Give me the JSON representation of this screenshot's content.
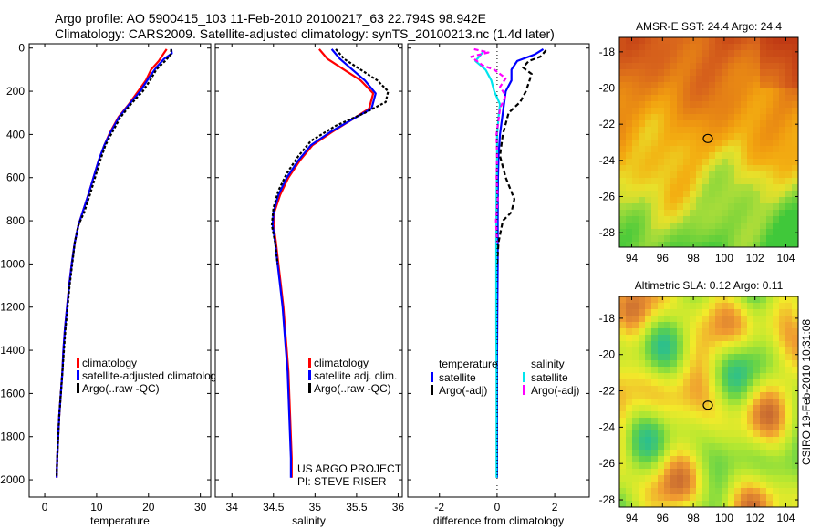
{
  "title": {
    "line1": "Argo profile: AO 5900415_103 11-Feb-2010 20100217_63 22.794S 98.942E",
    "line2": "Climatology: CARS2009. Satellite-adjusted climatology: synTS_20100213.nc (1.4d later)"
  },
  "credit": "CSIRO 19-Feb-2010 10:31:08",
  "project_note": {
    "line1": "US ARGO PROJECT",
    "line2": "PI: STEVE RISER"
  },
  "colors": {
    "clim": "#ff0000",
    "sat": "#0000ff",
    "argo": "#000000",
    "sal_sat": "#00e5ee",
    "sal_argo": "#ff00ff"
  },
  "chart_data": [
    {
      "type": "line",
      "name": "temperature",
      "xlabel": "temperature",
      "ylabel": "",
      "xlim": [
        -3,
        32
      ],
      "ylim": [
        2080,
        -20
      ],
      "xticks": [
        0,
        10,
        20,
        30
      ],
      "yticks": [
        0,
        200,
        400,
        600,
        800,
        1000,
        1200,
        1400,
        1600,
        1800,
        2000
      ],
      "legend": [
        "climatology",
        "satellite-adjusted climatology",
        "Argo(..raw -QC)"
      ],
      "series": [
        {
          "name": "climatology",
          "color": "#ff0000",
          "dash": "",
          "points": [
            [
              23.5,
              5
            ],
            [
              22.8,
              30
            ],
            [
              22,
              60
            ],
            [
              20.5,
              100
            ],
            [
              19.5,
              150
            ],
            [
              18,
              200
            ],
            [
              16.2,
              260
            ],
            [
              14.2,
              320
            ],
            [
              12.6,
              390
            ],
            [
              11.5,
              450
            ],
            [
              10.4,
              520
            ],
            [
              9.4,
              600
            ],
            [
              8.4,
              680
            ],
            [
              7.3,
              760
            ],
            [
              6.5,
              820
            ],
            [
              5.8,
              900
            ],
            [
              5.2,
              1000
            ],
            [
              4.7,
              1100
            ],
            [
              4.3,
              1200
            ],
            [
              3.9,
              1300
            ],
            [
              3.6,
              1400
            ],
            [
              3.4,
              1500
            ],
            [
              3.1,
              1600
            ],
            [
              2.8,
              1700
            ],
            [
              2.6,
              1800
            ],
            [
              2.4,
              1900
            ],
            [
              2.3,
              1990
            ]
          ]
        },
        {
          "name": "satellite-adjusted climatology",
          "color": "#0000ff",
          "dash": "",
          "points": [
            [
              24.4,
              5
            ],
            [
              24.5,
              25
            ],
            [
              23,
              50
            ],
            [
              21.5,
              90
            ],
            [
              20,
              140
            ],
            [
              18.4,
              200
            ],
            [
              16.3,
              260
            ],
            [
              14.3,
              320
            ],
            [
              12.7,
              390
            ],
            [
              11.5,
              450
            ],
            [
              10.4,
              520
            ],
            [
              9.4,
              600
            ],
            [
              8.4,
              680
            ],
            [
              7.3,
              760
            ],
            [
              6.5,
              820
            ],
            [
              5.8,
              900
            ],
            [
              5.2,
              1000
            ],
            [
              4.7,
              1100
            ],
            [
              4.3,
              1200
            ],
            [
              3.9,
              1300
            ],
            [
              3.6,
              1400
            ],
            [
              3.4,
              1500
            ],
            [
              3.1,
              1600
            ],
            [
              2.8,
              1700
            ],
            [
              2.6,
              1800
            ],
            [
              2.4,
              1900
            ],
            [
              2.3,
              1990
            ]
          ]
        },
        {
          "name": "Argo(..raw -QC)",
          "color": "#000000",
          "dash": "3,2",
          "points": [
            [
              24.4,
              5
            ],
            [
              24.3,
              30
            ],
            [
              23.2,
              60
            ],
            [
              21.5,
              100
            ],
            [
              20.3,
              150
            ],
            [
              18.9,
              200
            ],
            [
              16.6,
              260
            ],
            [
              14.6,
              320
            ],
            [
              13,
              390
            ],
            [
              11.7,
              450
            ],
            [
              10.7,
              520
            ],
            [
              9.7,
              600
            ],
            [
              8.7,
              680
            ],
            [
              7.6,
              760
            ],
            [
              6.5,
              820
            ],
            [
              5.8,
              900
            ],
            [
              5.3,
              1000
            ],
            [
              4.8,
              1100
            ],
            [
              4.4,
              1200
            ],
            [
              4,
              1300
            ],
            [
              3.7,
              1400
            ],
            [
              3.4,
              1500
            ],
            [
              3.1,
              1600
            ],
            [
              2.8,
              1700
            ],
            [
              2.6,
              1800
            ],
            [
              2.4,
              1900
            ],
            [
              2.3,
              1990
            ]
          ]
        }
      ]
    },
    {
      "type": "line",
      "name": "salinity",
      "xlabel": "salinity",
      "ylabel": "",
      "xlim": [
        33.8,
        36.05
      ],
      "ylim": [
        2080,
        -20
      ],
      "xticks": [
        34,
        34.5,
        35,
        35.5,
        36
      ],
      "yticks": [
        0,
        200,
        400,
        600,
        800,
        1000,
        1200,
        1400,
        1600,
        1800,
        2000
      ],
      "legend": [
        "climatology",
        "satellite adj. clim.",
        "Argo(..raw -QC)"
      ],
      "series": [
        {
          "name": "climatology",
          "color": "#ff0000",
          "dash": "",
          "points": [
            [
              35.05,
              5
            ],
            [
              35.15,
              50
            ],
            [
              35.35,
              100
            ],
            [
              35.55,
              150
            ],
            [
              35.7,
              210
            ],
            [
              35.65,
              280
            ],
            [
              35.45,
              330
            ],
            [
              35.2,
              390
            ],
            [
              34.97,
              450
            ],
            [
              34.82,
              520
            ],
            [
              34.68,
              600
            ],
            [
              34.58,
              680
            ],
            [
              34.51,
              760
            ],
            [
              34.5,
              820
            ],
            [
              34.53,
              900
            ],
            [
              34.56,
              1000
            ],
            [
              34.59,
              1100
            ],
            [
              34.62,
              1200
            ],
            [
              34.64,
              1300
            ],
            [
              34.66,
              1400
            ],
            [
              34.68,
              1500
            ],
            [
              34.69,
              1600
            ],
            [
              34.7,
              1700
            ],
            [
              34.71,
              1800
            ],
            [
              34.72,
              1900
            ],
            [
              34.72,
              1990
            ]
          ]
        },
        {
          "name": "satellite adj. clim.",
          "color": "#0000ff",
          "dash": "",
          "points": [
            [
              35.2,
              5
            ],
            [
              35.3,
              50
            ],
            [
              35.45,
              100
            ],
            [
              35.6,
              150
            ],
            [
              35.73,
              210
            ],
            [
              35.68,
              280
            ],
            [
              35.45,
              330
            ],
            [
              35.18,
              390
            ],
            [
              34.95,
              450
            ],
            [
              34.8,
              520
            ],
            [
              34.66,
              600
            ],
            [
              34.56,
              680
            ],
            [
              34.5,
              760
            ],
            [
              34.49,
              820
            ],
            [
              34.52,
              900
            ],
            [
              34.55,
              1000
            ],
            [
              34.58,
              1100
            ],
            [
              34.61,
              1200
            ],
            [
              34.63,
              1300
            ],
            [
              34.65,
              1400
            ],
            [
              34.67,
              1500
            ],
            [
              34.68,
              1600
            ],
            [
              34.69,
              1700
            ],
            [
              34.7,
              1800
            ],
            [
              34.71,
              1900
            ],
            [
              34.71,
              1990
            ]
          ]
        },
        {
          "name": "Argo(..raw -QC)",
          "color": "#000000",
          "dash": "3,2",
          "points": [
            [
              35.25,
              5
            ],
            [
              35.35,
              50
            ],
            [
              35.55,
              100
            ],
            [
              35.75,
              150
            ],
            [
              35.88,
              200
            ],
            [
              35.85,
              250
            ],
            [
              35.6,
              300
            ],
            [
              35.25,
              360
            ],
            [
              34.95,
              430
            ],
            [
              34.8,
              500
            ],
            [
              34.66,
              580
            ],
            [
              34.56,
              660
            ],
            [
              34.5,
              740
            ],
            [
              34.48,
              820
            ],
            [
              34.52,
              900
            ],
            [
              34.55,
              1000
            ]
          ]
        }
      ]
    },
    {
      "type": "line",
      "name": "difference",
      "xlabel": "difference from climatology",
      "ylabel": "",
      "xlim": [
        -3.1,
        3.2
      ],
      "ylim": [
        2080,
        -20
      ],
      "xticks": [
        -2,
        0,
        2
      ],
      "yticks": [
        0,
        200,
        400,
        600,
        800,
        1000,
        1200,
        1400,
        1600,
        1800,
        2000
      ],
      "legend_groups": [
        {
          "heading": "temperature",
          "items": [
            "satellite",
            "Argo(-adj)"
          ]
        },
        {
          "heading": "salinity",
          "items": [
            "satellite",
            "Argo(-adj)"
          ]
        }
      ],
      "series": [
        {
          "name": "temperature satellite",
          "color": "#0000ff",
          "dash": "",
          "points": [
            [
              1.6,
              5
            ],
            [
              1.3,
              30
            ],
            [
              0.7,
              60
            ],
            [
              0.5,
              100
            ],
            [
              0.5,
              150
            ],
            [
              0.3,
              200
            ],
            [
              0.2,
              300
            ],
            [
              0.1,
              400
            ],
            [
              0.05,
              500
            ],
            [
              0.03,
              600
            ],
            [
              0.02,
              800
            ],
            [
              0.02,
              1000
            ],
            [
              0.01,
              1200
            ],
            [
              0,
              1400
            ],
            [
              0,
              1600
            ],
            [
              0,
              1800
            ],
            [
              0,
              1990
            ]
          ]
        },
        {
          "name": "temperature Argo(-adj)",
          "color": "#000000",
          "dash": "5,3",
          "points": [
            [
              1.7,
              10
            ],
            [
              1.5,
              40
            ],
            [
              1.1,
              60
            ],
            [
              0.9,
              90
            ],
            [
              1.2,
              120
            ],
            [
              1.1,
              160
            ],
            [
              1,
              200
            ],
            [
              0.8,
              250
            ],
            [
              0.4,
              300
            ],
            [
              0.2,
              400
            ],
            [
              0.1,
              500
            ],
            [
              0.3,
              600
            ],
            [
              0.6,
              700
            ],
            [
              0.5,
              760
            ],
            [
              0.2,
              800
            ],
            [
              0.05,
              900
            ],
            [
              0,
              1000
            ]
          ]
        },
        {
          "name": "salinity satellite",
          "color": "#00e5ee",
          "dash": "",
          "points": [
            [
              -0.5,
              20
            ],
            [
              -0.75,
              60
            ],
            [
              -0.4,
              100
            ],
            [
              -0.2,
              150
            ],
            [
              -0.1,
              200
            ],
            [
              0.1,
              260
            ],
            [
              0.05,
              320
            ],
            [
              0,
              400
            ],
            [
              0,
              500
            ],
            [
              -0.02,
              700
            ],
            [
              -0.03,
              900
            ],
            [
              -0.03,
              1100
            ],
            [
              -0.03,
              1300
            ],
            [
              -0.02,
              1500
            ],
            [
              -0.02,
              1700
            ],
            [
              -0.02,
              1900
            ],
            [
              -0.02,
              1990
            ]
          ]
        },
        {
          "name": "salinity Argo(-adj)",
          "color": "#ff00ff",
          "dash": "5,3",
          "points": [
            [
              -0.8,
              5
            ],
            [
              -0.3,
              20
            ],
            [
              -0.9,
              40
            ],
            [
              -0.5,
              80
            ],
            [
              -0.1,
              100
            ],
            [
              0.3,
              140
            ],
            [
              0.1,
              180
            ],
            [
              0.3,
              220
            ],
            [
              0.1,
              280
            ],
            [
              -0.02,
              400
            ],
            [
              0,
              500
            ],
            [
              -0.02,
              600
            ],
            [
              0.02,
              700
            ],
            [
              -0.04,
              800
            ],
            [
              0,
              900
            ]
          ]
        }
      ]
    },
    {
      "type": "heatmap",
      "name": "sst_map",
      "title": "AMSR-E SST: 24.4 Argo: 24.4",
      "xticks": [
        94,
        96,
        98,
        100,
        102,
        104
      ],
      "yticks": [
        -18,
        -20,
        -22,
        -24,
        -26,
        -28
      ],
      "xlim": [
        93.2,
        104.8
      ],
      "ylim": [
        -17.2,
        -28.8
      ],
      "marker": {
        "lon": 98.94,
        "lat": -22.79
      },
      "colors": [
        "#f2a000",
        "#e07020",
        "#c84818",
        "#f0d020",
        "#70d040",
        "#30c030"
      ]
    },
    {
      "type": "heatmap",
      "name": "sla_map",
      "title": "Altimetric SLA: 0.12 Argo: 0.11",
      "xticks": [
        94,
        96,
        98,
        100,
        102,
        104
      ],
      "yticks": [
        -18,
        -20,
        -22,
        -24,
        -26,
        -28
      ],
      "xlim": [
        93.2,
        104.8
      ],
      "ylim": [
        -16.8,
        -28.4
      ],
      "marker": {
        "lon": 98.94,
        "lat": -22.79
      },
      "colors": [
        "#2bbf8e",
        "#5fd14a",
        "#b8e830",
        "#f2ea2a",
        "#f09a30",
        "#c86a30"
      ]
    }
  ]
}
